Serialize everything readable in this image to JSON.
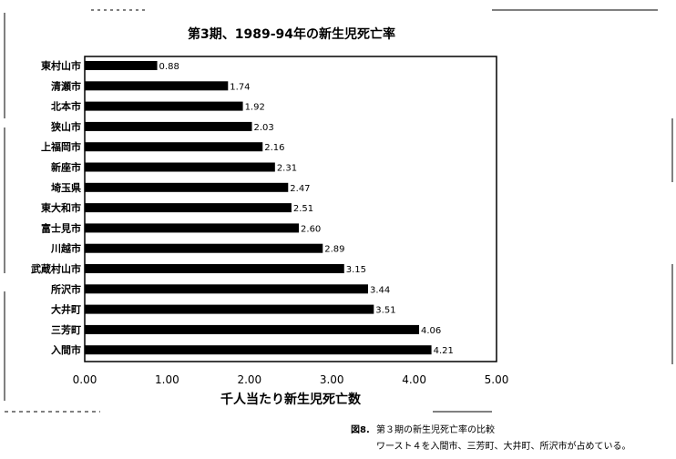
{
  "chart_data": {
    "type": "bar",
    "orientation": "horizontal",
    "title": "第3期、1989-94年の新生児死亡率",
    "xlabel": "千人当たり新生児死亡数",
    "ylabel": "",
    "xlim": [
      0,
      5
    ],
    "xticks": [
      "0.00",
      "1.00",
      "2.00",
      "3.00",
      "4.00",
      "5.00"
    ],
    "categories": [
      "東村山市",
      "清瀬市",
      "北本市",
      "狭山市",
      "上福岡市",
      "新座市",
      "埼玉県",
      "東大和市",
      "富士見市",
      "川越市",
      "武蔵村山市",
      "所沢市",
      "大井町",
      "三芳町",
      "入間市"
    ],
    "values": [
      0.88,
      1.74,
      1.92,
      2.03,
      2.16,
      2.31,
      2.47,
      2.51,
      2.6,
      2.89,
      3.15,
      3.44,
      3.51,
      4.06,
      4.21
    ],
    "value_labels": [
      "0.88",
      "1.74",
      "1.92",
      "2.03",
      "2.16",
      "2.31",
      "2.47",
      "2.51",
      "2.60",
      "2.89",
      "3.15",
      "3.44",
      "3.51",
      "4.06",
      "4.21"
    ],
    "bar_color": "#000000",
    "grid": false,
    "legend": "none"
  },
  "caption": {
    "label": "図8.",
    "line1": "第３期の新生児死亡率の比較",
    "line2": "ワースト４を入間市、三芳町、大井町、所沢市が占めている。"
  }
}
